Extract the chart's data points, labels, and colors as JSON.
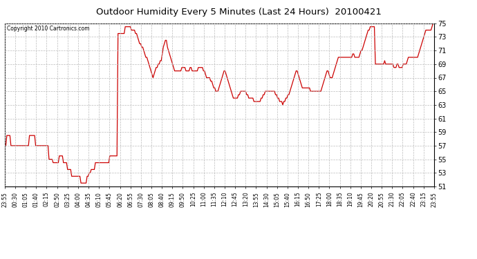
{
  "title": "Outdoor Humidity Every 5 Minutes (Last 24 Hours)  20100421",
  "copyright": "Copyright 2010 Cartronics.com",
  "line_color": "#cc0000",
  "bg_color": "#ffffff",
  "grid_color": "#bbbbbb",
  "ylim": [
    51.0,
    75.0
  ],
  "yticks": [
    51.0,
    53.0,
    55.0,
    57.0,
    59.0,
    61.0,
    63.0,
    65.0,
    67.0,
    69.0,
    71.0,
    73.0,
    75.0
  ],
  "xtick_labels": [
    "23:55",
    "00:30",
    "01:05",
    "01:40",
    "02:15",
    "02:50",
    "03:25",
    "04:00",
    "04:35",
    "05:10",
    "05:45",
    "06:20",
    "06:55",
    "07:30",
    "08:05",
    "08:40",
    "09:15",
    "09:50",
    "10:25",
    "11:00",
    "11:35",
    "12:10",
    "12:45",
    "13:20",
    "13:55",
    "14:30",
    "15:05",
    "15:40",
    "16:15",
    "16:50",
    "17:25",
    "18:00",
    "18:35",
    "19:10",
    "19:45",
    "20:20",
    "20:55",
    "21:30",
    "22:05",
    "22:40",
    "23:15",
    "23:55"
  ],
  "humidity_values": [
    57.0,
    57.0,
    58.5,
    58.5,
    58.5,
    58.5,
    57.0,
    57.0,
    57.0,
    57.0,
    57.0,
    57.0,
    57.0,
    57.0,
    57.0,
    57.0,
    57.0,
    57.0,
    57.0,
    57.0,
    57.0,
    57.0,
    57.0,
    57.0,
    58.5,
    58.5,
    58.5,
    58.5,
    58.5,
    58.5,
    57.0,
    57.0,
    57.0,
    57.0,
    57.0,
    57.0,
    57.0,
    57.0,
    57.0,
    57.0,
    57.0,
    57.0,
    57.0,
    55.0,
    55.0,
    55.0,
    55.0,
    54.5,
    54.5,
    54.5,
    54.5,
    54.5,
    54.5,
    55.5,
    55.5,
    55.5,
    55.5,
    54.5,
    54.5,
    54.5,
    54.5,
    53.5,
    53.5,
    53.5,
    53.5,
    52.5,
    52.5,
    52.5,
    52.5,
    52.5,
    52.5,
    52.5,
    52.5,
    52.5,
    51.5,
    51.5,
    51.5,
    51.5,
    51.5,
    51.5,
    52.5,
    52.5,
    53.0,
    53.0,
    53.5,
    53.5,
    53.5,
    53.5,
    54.5,
    54.5,
    54.5,
    54.5,
    54.5,
    54.5,
    54.5,
    54.5,
    54.5,
    54.5,
    54.5,
    54.5,
    54.5,
    54.5,
    55.5,
    55.5,
    55.5,
    55.5,
    55.5,
    55.5,
    55.5,
    55.5,
    73.5,
    73.5,
    73.5,
    73.5,
    73.5,
    73.5,
    73.5,
    74.5,
    74.5,
    74.5,
    74.5,
    74.5,
    74.5,
    74.0,
    74.0,
    74.0,
    74.0,
    73.5,
    73.5,
    73.0,
    72.5,
    72.0,
    72.0,
    71.5,
    71.5,
    71.0,
    70.5,
    70.0,
    70.0,
    69.5,
    69.0,
    68.5,
    68.0,
    67.5,
    67.0,
    67.5,
    68.0,
    68.5,
    68.5,
    69.0,
    69.0,
    69.5,
    69.5,
    70.5,
    71.5,
    72.0,
    72.5,
    72.5,
    71.5,
    71.0,
    70.5,
    70.0,
    69.5,
    69.0,
    68.5,
    68.0,
    68.0,
    68.0,
    68.0,
    68.0,
    68.0,
    68.0,
    68.5,
    68.5,
    68.5,
    68.5,
    68.0,
    68.0,
    68.0,
    68.0,
    68.5,
    68.5,
    68.0,
    68.0,
    68.0,
    68.0,
    68.0,
    68.0,
    68.5,
    68.5,
    68.5,
    68.5,
    68.5,
    68.0,
    68.0,
    67.5,
    67.0,
    67.0,
    67.0,
    67.0,
    66.5,
    66.5,
    66.0,
    65.5,
    65.5,
    65.0,
    65.0,
    65.0,
    65.5,
    66.0,
    66.5,
    67.0,
    67.5,
    68.0,
    68.0,
    67.5,
    67.0,
    66.5,
    66.0,
    65.5,
    65.0,
    64.5,
    64.0,
    64.0,
    64.0,
    64.0,
    64.0,
    64.5,
    64.5,
    65.0,
    65.0,
    65.0,
    65.0,
    65.0,
    65.0,
    64.5,
    64.5,
    64.0,
    64.0,
    64.0,
    64.0,
    64.0,
    63.5,
    63.5,
    63.5,
    63.5,
    63.5,
    63.5,
    63.5,
    64.0,
    64.0,
    64.5,
    64.5,
    65.0,
    65.0,
    65.0,
    65.0,
    65.0,
    65.0,
    65.0,
    65.0,
    65.0,
    65.0,
    64.5,
    64.5,
    64.0,
    64.0,
    63.5,
    63.5,
    63.5,
    63.0,
    63.5,
    63.5,
    64.0,
    64.0,
    64.5,
    64.5,
    65.0,
    65.5,
    66.0,
    66.5,
    67.0,
    67.5,
    68.0,
    68.0,
    67.5,
    67.0,
    66.5,
    66.0,
    65.5,
    65.5,
    65.5,
    65.5,
    65.5,
    65.5,
    65.5,
    65.5,
    65.0,
    65.0,
    65.0,
    65.0,
    65.0,
    65.0,
    65.0,
    65.0,
    65.0,
    65.0,
    65.0,
    65.5,
    66.0,
    66.5,
    67.0,
    67.5,
    68.0,
    68.0,
    67.5,
    67.0,
    67.0,
    67.0,
    67.5,
    68.0,
    68.5,
    69.0,
    69.5,
    70.0,
    70.0,
    70.0,
    70.0,
    70.0,
    70.0,
    70.0,
    70.0,
    70.0,
    70.0,
    70.0,
    70.0,
    70.0,
    70.0,
    70.5,
    70.5,
    70.0,
    70.0,
    70.0,
    70.0,
    70.0,
    70.5,
    71.0,
    71.0,
    71.5,
    72.0,
    72.5,
    73.0,
    73.5,
    74.0,
    74.0,
    74.5,
    74.5,
    74.5,
    74.5,
    74.5,
    69.0,
    69.0,
    69.0,
    69.0,
    69.0,
    69.0,
    69.0,
    69.0,
    69.0,
    69.5,
    69.0,
    69.0,
    69.0,
    69.0,
    69.0,
    69.0,
    69.0,
    69.0,
    68.5,
    68.5,
    68.5,
    69.0,
    69.0,
    68.5,
    68.5,
    68.5,
    68.5,
    69.0,
    69.0,
    69.0,
    69.0,
    69.5,
    70.0,
    70.0,
    70.0,
    70.0,
    70.0,
    70.0,
    70.0,
    70.0,
    70.0,
    70.0,
    70.5,
    71.0,
    71.5,
    72.0,
    72.5,
    73.0,
    73.5,
    74.0,
    74.0,
    74.0,
    74.0,
    74.0,
    74.0,
    74.5,
    75.0,
    75.0
  ]
}
